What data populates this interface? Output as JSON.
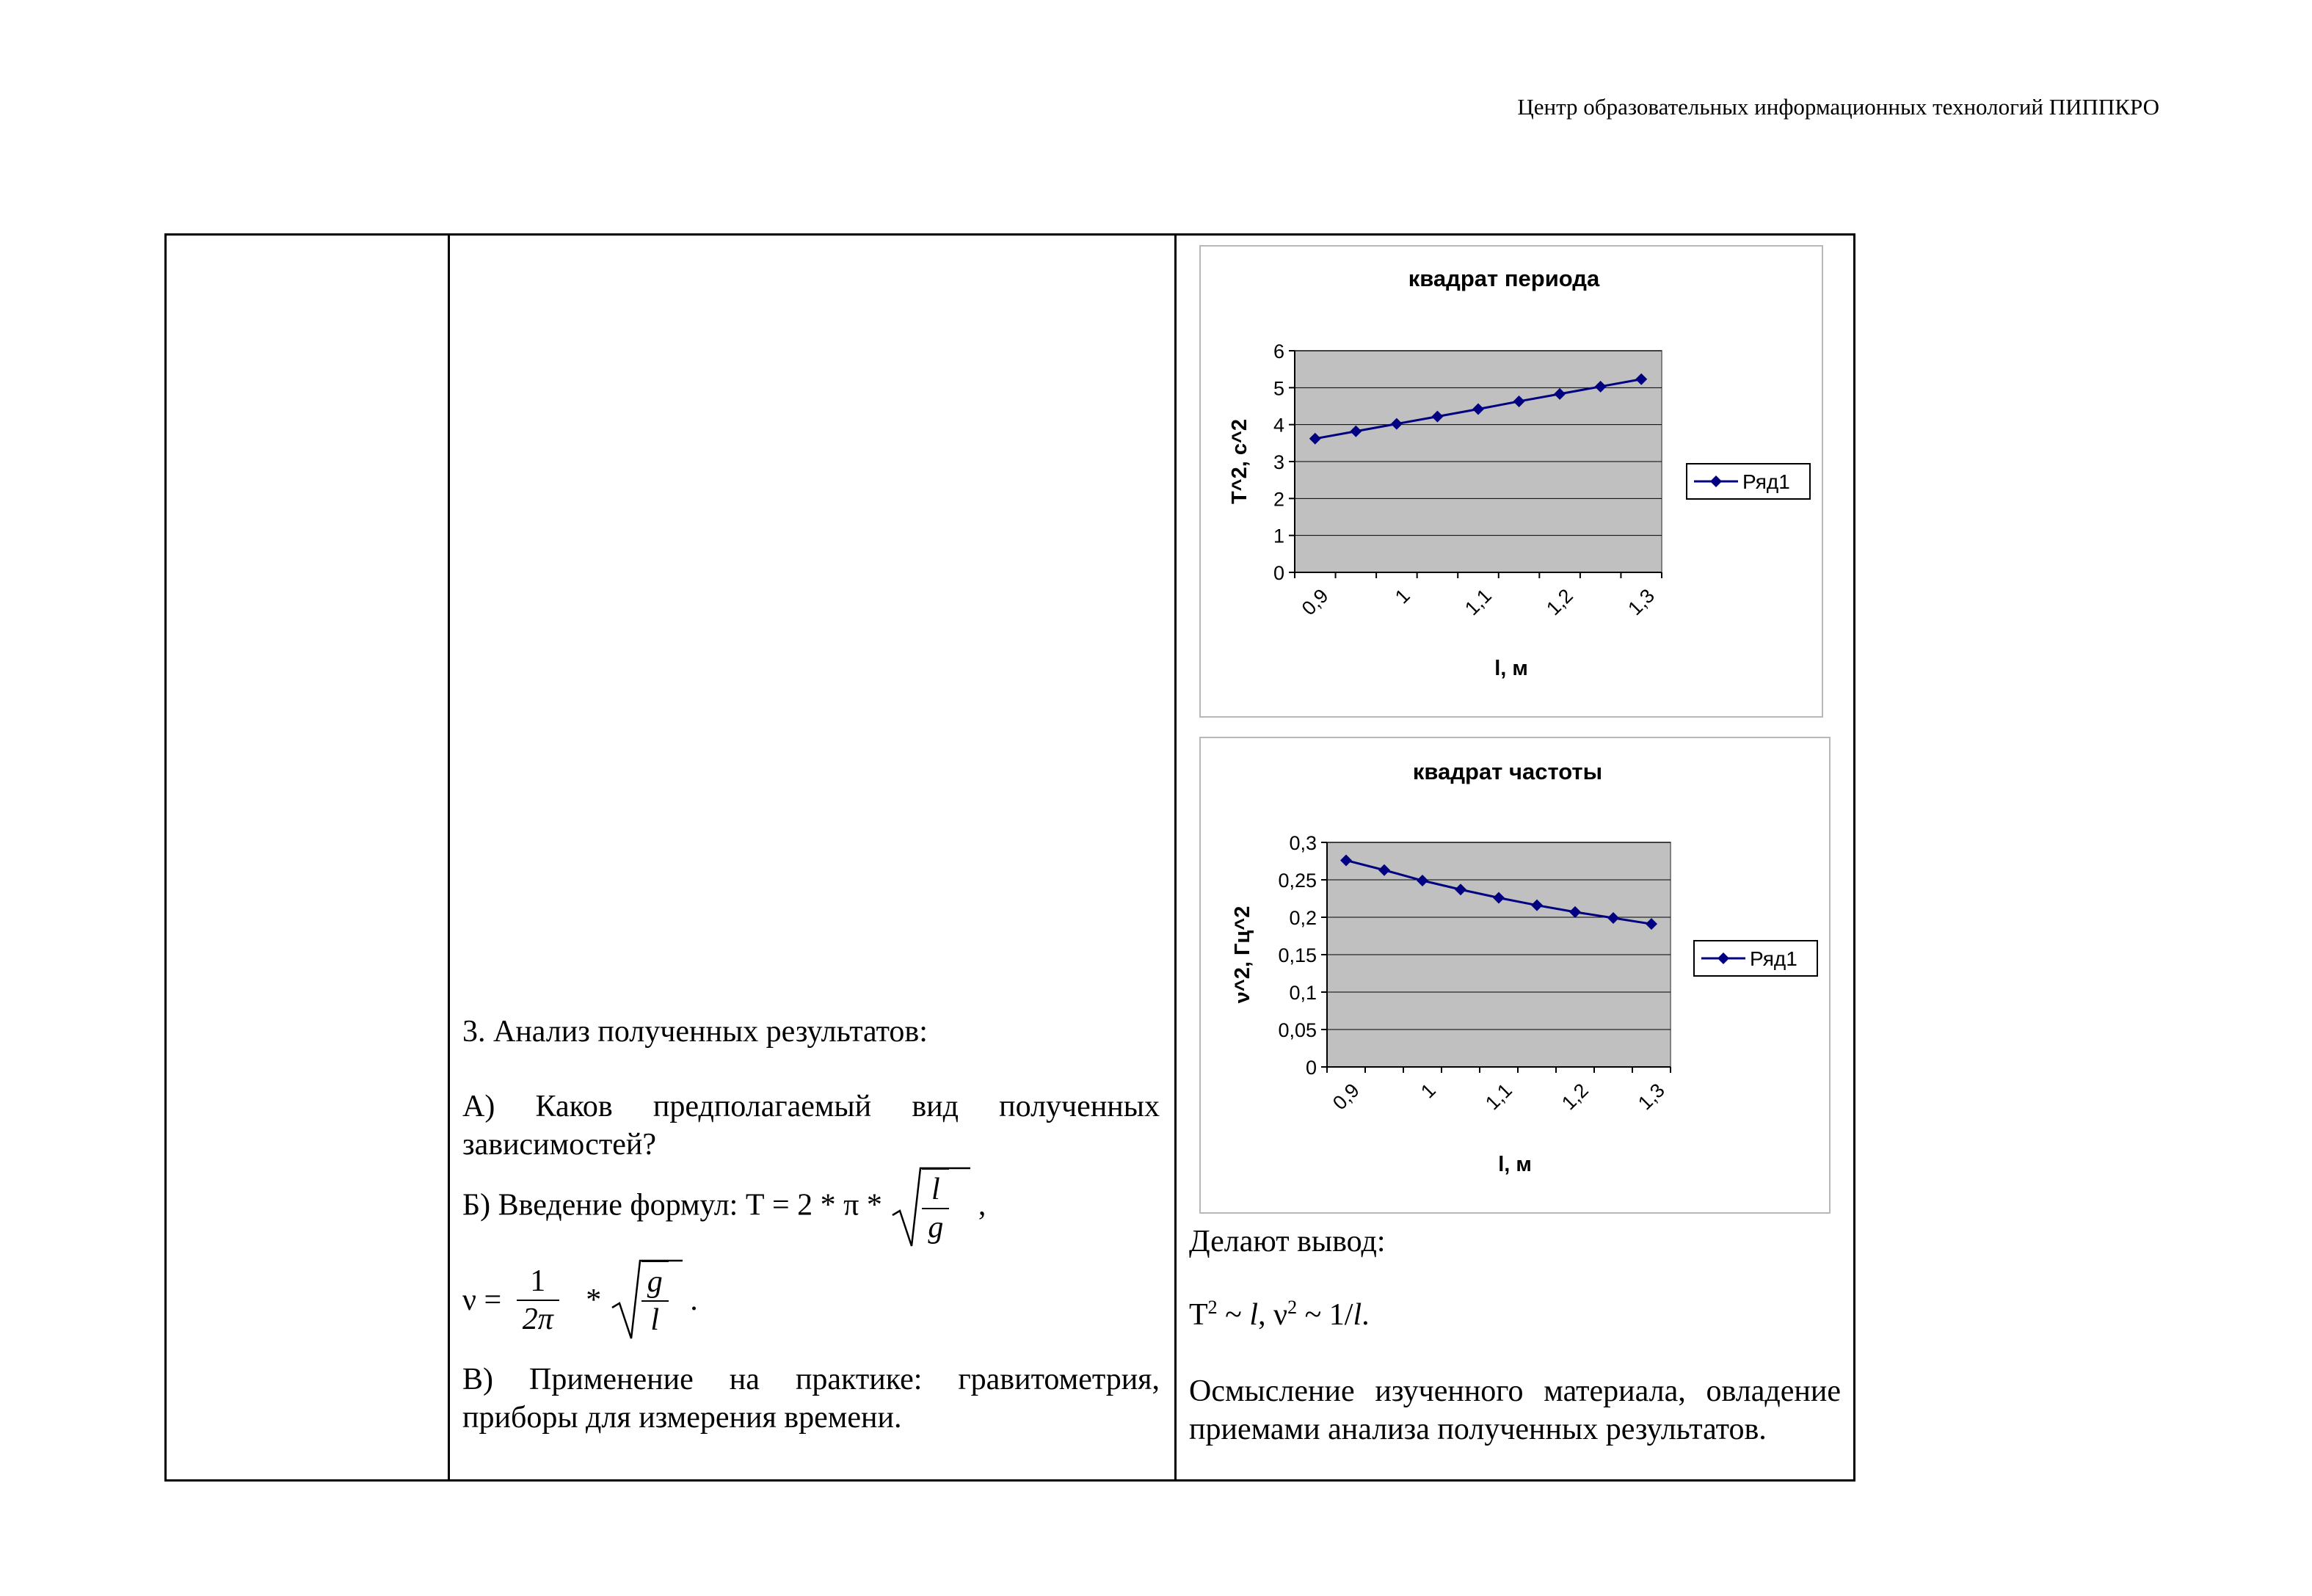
{
  "header": {
    "text": "Центр образовательных информационных технологий ПИППКРО"
  },
  "middle": {
    "heading": "3. Анализ полученных результатов:",
    "item_a": "А) Каков предполагаемый вид полученных зависимостей?",
    "item_b_prefix": "Б) Введение формул: Т = 2 * π *",
    "item_b_num": "l",
    "item_b_den": "g",
    "item_b_suffix": ",",
    "nu_prefix": "ν =",
    "nu_frac_num": "1",
    "nu_frac_den": "2π",
    "nu_mult": "*",
    "nu_root_num": "g",
    "nu_root_den": "l",
    "nu_suffix": ".",
    "item_c": "В) Применение на практике: гравитометрия, приборы для измерения времени."
  },
  "right": {
    "conclusion_label": "Делают вывод:",
    "formula": {
      "T": "T",
      "sq": "2",
      "tilde1": " ~ ",
      "l": "l",
      "comma": ", ",
      "nu": "ν",
      "sq2": "2",
      "tilde2": " ~ 1/",
      "l2": "l",
      "dot": "."
    },
    "summary": "Осмысление изученного материала, овладение приемами анализа полученных результатов."
  },
  "chart_data": [
    {
      "type": "line",
      "title": "квадрат периода",
      "xlabel": "l, м",
      "ylabel": "T^2, с^2",
      "x": [
        0.9,
        0.95,
        1.0,
        1.05,
        1.1,
        1.15,
        1.2,
        1.25,
        1.3
      ],
      "x_tick_labels": [
        "0,9",
        "1",
        "1,1",
        "1,2",
        "1,3"
      ],
      "y_tick_labels": [
        "0",
        "1",
        "2",
        "3",
        "4",
        "5",
        "6"
      ],
      "ylim": [
        0,
        6
      ],
      "grid": true,
      "legend_position": "right",
      "series": [
        {
          "name": "Ряд1",
          "values": [
            3.62,
            3.82,
            4.02,
            4.22,
            4.42,
            4.63,
            4.83,
            5.03,
            5.23
          ]
        }
      ],
      "colors": {
        "line": "#000080",
        "plot_bg": "#c0c0c0",
        "grid": "#000000"
      }
    },
    {
      "type": "line",
      "title": "квадрат частоты",
      "xlabel": "l, м",
      "ylabel": "ν^2, Гц^2",
      "x": [
        0.9,
        0.95,
        1.0,
        1.05,
        1.1,
        1.15,
        1.2,
        1.25,
        1.3
      ],
      "x_tick_labels": [
        "0,9",
        "1",
        "1,1",
        "1,2",
        "1,3"
      ],
      "y_tick_labels": [
        "0",
        "0,05",
        "0,1",
        "0,15",
        "0,2",
        "0,25",
        "0,3"
      ],
      "ylim": [
        0,
        0.3
      ],
      "grid": true,
      "legend_position": "right",
      "series": [
        {
          "name": "Ряд1",
          "values": [
            0.276,
            0.263,
            0.249,
            0.237,
            0.226,
            0.216,
            0.207,
            0.199,
            0.191
          ]
        }
      ],
      "colors": {
        "line": "#000080",
        "plot_bg": "#c0c0c0",
        "grid": "#000000"
      }
    }
  ]
}
